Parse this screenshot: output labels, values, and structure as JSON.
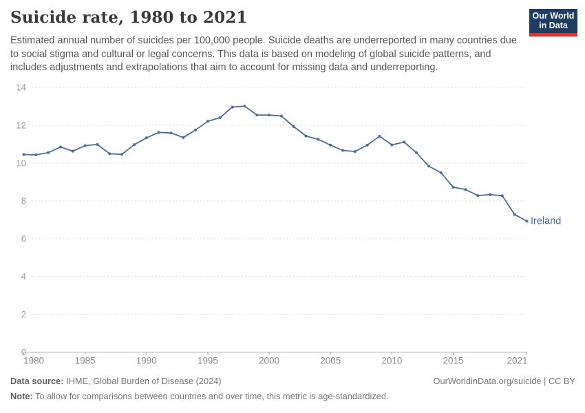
{
  "header": {
    "title": "Suicide rate, 1980 to 2021",
    "subtitle": "Estimated annual number of suicides per 100,000 people. Suicide deaths are underreported in many countries due to social stigma and cultural or legal concerns. This data is based on modeling of global suicide patterns, and includes adjustments and extrapolations that aim to account for missing data and underreporting.",
    "logo": {
      "line1": "Our World",
      "line2": "in Data",
      "bg_color": "#1d3d63",
      "stripe_color": "#dc352b",
      "text_color": "#ffffff"
    }
  },
  "chart_data": {
    "type": "line",
    "title": "Suicide rate, 1980 to 2021",
    "unit": "suicides per 100,000 people",
    "xlabel": "",
    "ylabel": "",
    "grid": "horizontal-dashed",
    "legend_position": "end-of-line-label",
    "ylim": [
      0,
      14
    ],
    "yticks": [
      0,
      2,
      4,
      6,
      8,
      10,
      12,
      14
    ],
    "xticks": [
      1980,
      1985,
      1990,
      1995,
      2000,
      2005,
      2010,
      2015,
      2021
    ],
    "x": [
      1980,
      1981,
      1982,
      1983,
      1984,
      1985,
      1986,
      1987,
      1988,
      1989,
      1990,
      1991,
      1992,
      1993,
      1994,
      1995,
      1996,
      1997,
      1998,
      1999,
      2000,
      2001,
      2002,
      2003,
      2004,
      2005,
      2006,
      2007,
      2008,
      2009,
      2010,
      2011,
      2012,
      2013,
      2014,
      2015,
      2016,
      2017,
      2018,
      2019,
      2020,
      2021
    ],
    "series": [
      {
        "name": "Ireland",
        "color": "#4C6A9C",
        "values": [
          10.45,
          10.43,
          10.55,
          10.85,
          10.63,
          10.92,
          10.98,
          10.49,
          10.46,
          10.97,
          11.33,
          11.62,
          11.59,
          11.35,
          11.75,
          12.21,
          12.4,
          12.96,
          13.01,
          12.54,
          12.54,
          12.49,
          11.93,
          11.43,
          11.25,
          10.95,
          10.67,
          10.61,
          10.95,
          11.42,
          10.96,
          11.11,
          10.55,
          9.84,
          9.49,
          8.72,
          8.6,
          8.28,
          8.33,
          8.27,
          7.28,
          6.93
        ]
      }
    ]
  },
  "footer": {
    "source_label": "Data source:",
    "source_text": " IHME, Global Burden of Disease (2024)",
    "attribution": "OurWorldinData.org/suicide | CC BY",
    "note_label": "Note:",
    "note_text": " To allow for comparisons between countries and over time, this metric is age-standardized."
  },
  "colors": {
    "line": "#4C6A9C",
    "grid": "#dedede",
    "axis": "#a3a3a3",
    "y_tick_label": "#999999",
    "x_tick_label": "#8a8a8a",
    "title": "#3a3a3a",
    "subtitle": "#565656",
    "footer": "#757575"
  }
}
